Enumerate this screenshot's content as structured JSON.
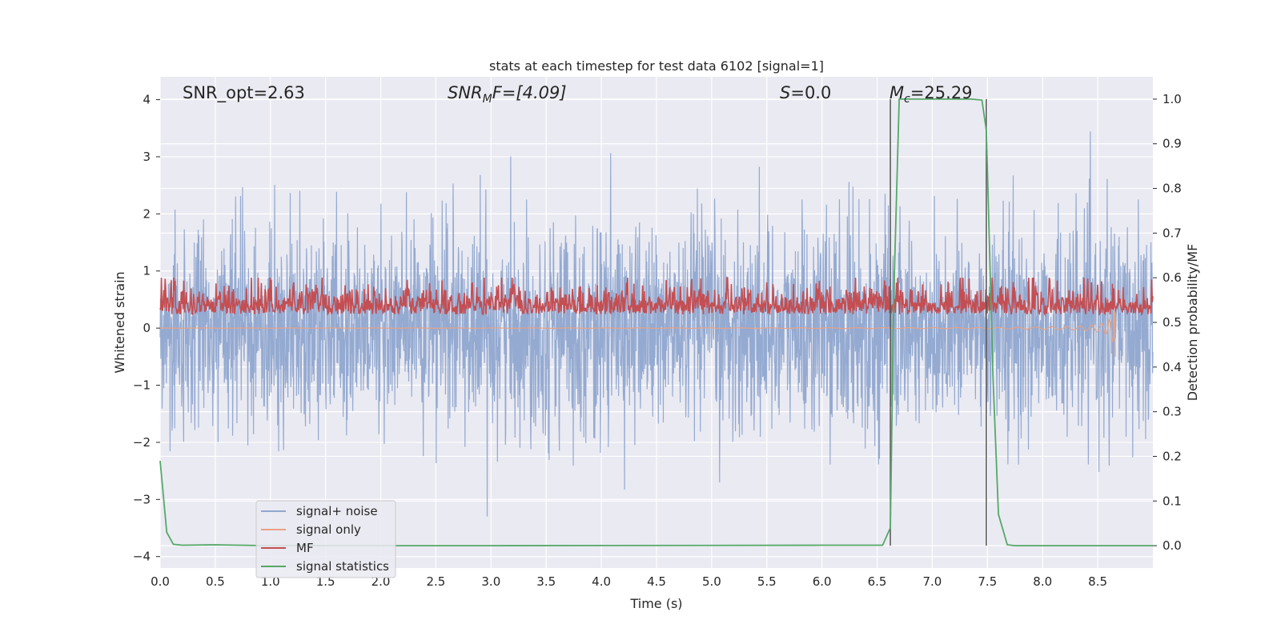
{
  "chart_data": {
    "type": "line",
    "title": "stats at each timestep for test data 6102 [signal=1]",
    "xlabel": "Time (s)",
    "ylabel": "Whitened strain",
    "ylabel_right": "Detection probability/MF",
    "xlim": [
      0.0,
      9.0
    ],
    "ylim": [
      -4.2,
      4.4
    ],
    "ylim_right": [
      -0.05,
      1.05
    ],
    "xticks": [
      "0.0",
      "0.5",
      "1.0",
      "1.5",
      "2.0",
      "2.5",
      "3.0",
      "3.5",
      "4.0",
      "4.5",
      "5.0",
      "5.5",
      "6.0",
      "6.5",
      "7.0",
      "7.5",
      "8.0",
      "8.5"
    ],
    "yticks": [
      "−4",
      "−3",
      "−2",
      "−1",
      "0",
      "1",
      "2",
      "3",
      "4"
    ],
    "yticks_right": [
      "0.0",
      "0.1",
      "0.2",
      "0.3",
      "0.4",
      "0.5",
      "0.6",
      "0.7",
      "0.8",
      "0.9",
      "1.0"
    ],
    "grid": true,
    "legend_position": "lower-left",
    "annotations": {
      "snr_opt": "SNR_opt=2.63",
      "snr_mf_main": "SNR",
      "snr_mf_sub": "M",
      "snr_mf_rest": "F=[4.09]",
      "s_main": "S",
      "s_rest": "=0.0",
      "mc_main": "M",
      "mc_sub": "c",
      "mc_rest": "=25.29"
    },
    "vlines": [
      6.62,
      7.49
    ],
    "series": [
      {
        "name": "signal+ noise",
        "color": "#8fa7cf",
        "axis": "left",
        "kind": "noise",
        "std": 0.9,
        "x_range": [
          0.0,
          9.0
        ]
      },
      {
        "name": "signal only",
        "color": "#e8a184",
        "axis": "left",
        "kind": "chirp",
        "x_range": [
          0.0,
          8.66
        ],
        "peak": -0.5
      },
      {
        "name": "MF",
        "color": "#c44e52",
        "axis": "right",
        "kind": "mf",
        "mean": 0.53,
        "x_range": [
          0.0,
          9.0
        ]
      },
      {
        "name": "signal statistics",
        "color": "#55a868",
        "axis": "right",
        "kind": "step",
        "x": [
          0.0,
          0.06,
          0.12,
          0.2,
          0.5,
          1.0,
          3.0,
          6.0,
          6.55,
          6.62,
          6.65,
          6.7,
          7.0,
          7.35,
          7.45,
          7.49,
          7.55,
          7.6,
          7.68,
          7.75,
          9.0
        ],
        "y": [
          0.19,
          0.03,
          0.003,
          0.001,
          0.002,
          0.0,
          0.0,
          0.001,
          0.001,
          0.04,
          0.55,
          1.0,
          1.0,
          1.0,
          0.998,
          0.93,
          0.38,
          0.07,
          0.002,
          0.0,
          0.0
        ]
      }
    ]
  }
}
